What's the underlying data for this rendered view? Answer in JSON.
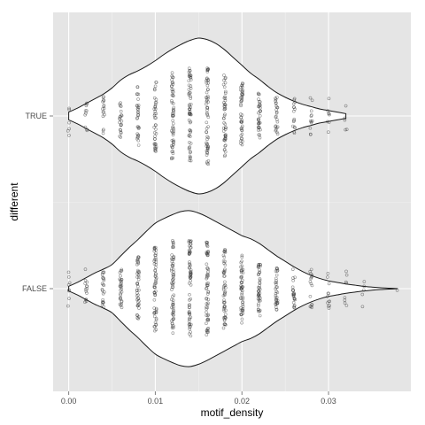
{
  "chart_data": {
    "type": "violin",
    "title": "",
    "xlabel": "motif_density",
    "ylabel": "different",
    "xlim": [
      -0.0018,
      0.0395
    ],
    "x_ticks": [
      "0.00",
      "0.01",
      "0.02",
      "0.03"
    ],
    "x_tick_values": [
      0.0,
      0.01,
      0.02,
      0.03
    ],
    "categories": [
      "TRUE",
      "FALSE"
    ],
    "grid": true,
    "panel_background": "#e5e5e5",
    "grid_color": "#ffffff",
    "violin_fill": "#ffffff",
    "violin_stroke": "#1a1a1a",
    "point_color": "#333333",
    "violins": [
      {
        "category": "TRUE",
        "min": 0.0,
        "max": 0.032,
        "density_x": [
          0.0,
          0.001,
          0.002,
          0.003,
          0.004,
          0.005,
          0.006,
          0.007,
          0.008,
          0.009,
          0.01,
          0.011,
          0.012,
          0.013,
          0.014,
          0.015,
          0.016,
          0.017,
          0.018,
          0.019,
          0.02,
          0.021,
          0.022,
          0.023,
          0.024,
          0.025,
          0.026,
          0.027,
          0.028,
          0.029,
          0.03,
          0.031,
          0.032
        ],
        "density": [
          0.05,
          0.1,
          0.16,
          0.22,
          0.28,
          0.36,
          0.46,
          0.53,
          0.58,
          0.64,
          0.71,
          0.79,
          0.86,
          0.92,
          0.97,
          1.0,
          0.98,
          0.93,
          0.85,
          0.75,
          0.65,
          0.55,
          0.47,
          0.38,
          0.3,
          0.24,
          0.19,
          0.15,
          0.12,
          0.09,
          0.07,
          0.05,
          0.03
        ]
      },
      {
        "category": "FALSE",
        "min": 0.0,
        "max": 0.038,
        "density_x": [
          0.0,
          0.001,
          0.002,
          0.003,
          0.004,
          0.005,
          0.006,
          0.007,
          0.008,
          0.009,
          0.01,
          0.011,
          0.012,
          0.013,
          0.014,
          0.015,
          0.016,
          0.017,
          0.018,
          0.019,
          0.02,
          0.021,
          0.022,
          0.023,
          0.024,
          0.025,
          0.026,
          0.027,
          0.028,
          0.029,
          0.03,
          0.031,
          0.032,
          0.033,
          0.034,
          0.035,
          0.036,
          0.037,
          0.038
        ],
        "density": [
          0.03,
          0.08,
          0.14,
          0.2,
          0.25,
          0.31,
          0.42,
          0.53,
          0.63,
          0.74,
          0.84,
          0.9,
          0.95,
          0.99,
          1.0,
          0.97,
          0.92,
          0.86,
          0.8,
          0.74,
          0.68,
          0.64,
          0.58,
          0.5,
          0.42,
          0.35,
          0.28,
          0.22,
          0.17,
          0.13,
          0.1,
          0.08,
          0.06,
          0.045,
          0.03,
          0.02,
          0.012,
          0.006,
          0.0
        ]
      }
    ],
    "jitter_points": [
      {
        "category": "TRUE",
        "columns": [
          {
            "x": 0.0,
            "n": 6
          },
          {
            "x": 0.002,
            "n": 10
          },
          {
            "x": 0.004,
            "n": 16
          },
          {
            "x": 0.006,
            "n": 22
          },
          {
            "x": 0.008,
            "n": 30
          },
          {
            "x": 0.01,
            "n": 40
          },
          {
            "x": 0.012,
            "n": 55
          },
          {
            "x": 0.014,
            "n": 60
          },
          {
            "x": 0.016,
            "n": 60
          },
          {
            "x": 0.018,
            "n": 50
          },
          {
            "x": 0.02,
            "n": 44
          },
          {
            "x": 0.022,
            "n": 34
          },
          {
            "x": 0.024,
            "n": 24
          },
          {
            "x": 0.026,
            "n": 16
          },
          {
            "x": 0.028,
            "n": 12
          },
          {
            "x": 0.03,
            "n": 8
          },
          {
            "x": 0.032,
            "n": 5
          }
        ]
      },
      {
        "category": "FALSE",
        "columns": [
          {
            "x": 0.0,
            "n": 8
          },
          {
            "x": 0.002,
            "n": 14
          },
          {
            "x": 0.004,
            "n": 22
          },
          {
            "x": 0.006,
            "n": 30
          },
          {
            "x": 0.008,
            "n": 44
          },
          {
            "x": 0.01,
            "n": 58
          },
          {
            "x": 0.012,
            "n": 64
          },
          {
            "x": 0.014,
            "n": 66
          },
          {
            "x": 0.016,
            "n": 62
          },
          {
            "x": 0.018,
            "n": 56
          },
          {
            "x": 0.02,
            "n": 50
          },
          {
            "x": 0.022,
            "n": 44
          },
          {
            "x": 0.024,
            "n": 34
          },
          {
            "x": 0.026,
            "n": 24
          },
          {
            "x": 0.028,
            "n": 16
          },
          {
            "x": 0.03,
            "n": 12
          },
          {
            "x": 0.032,
            "n": 8
          },
          {
            "x": 0.034,
            "n": 5
          },
          {
            "x": 0.038,
            "n": 1
          }
        ]
      }
    ]
  }
}
